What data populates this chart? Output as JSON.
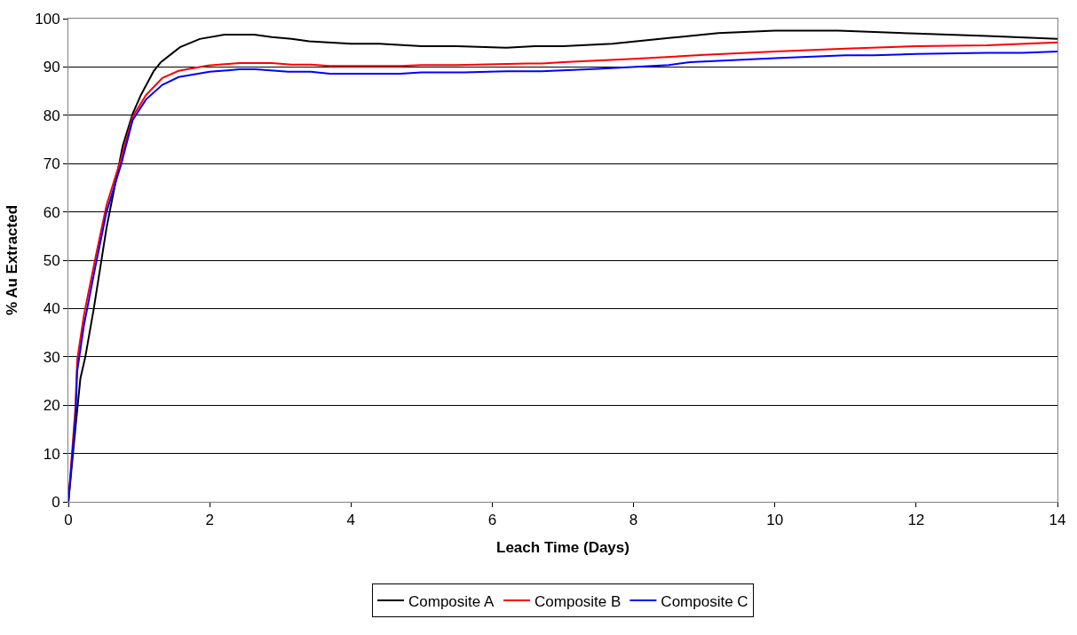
{
  "chart_data": {
    "type": "line",
    "xlabel": "Leach Time (Days)",
    "ylabel": "% Au Extracted",
    "xlim": [
      0,
      14
    ],
    "xticks": [
      0,
      2,
      4,
      6,
      8,
      10,
      12,
      14
    ],
    "ylim": [
      0,
      100
    ],
    "yticks": [
      0,
      10,
      20,
      30,
      40,
      50,
      60,
      70,
      80,
      90,
      100
    ],
    "grid": "y",
    "legend": "bottom",
    "marker": "none",
    "line_style": "solid",
    "series": [
      {
        "name": "Composite A",
        "color": "#000000",
        "x": [
          0,
          0.125,
          0.17,
          0.24,
          0.36,
          0.54,
          0.77,
          0.91,
          1.03,
          1.21,
          1.31,
          1.58,
          1.86,
          2.21,
          2.63,
          2.88,
          3.16,
          3.41,
          4,
          4.4,
          5,
          5.5,
          6.2,
          6.6,
          7,
          7.7,
          8.5,
          9.2,
          10,
          10.9,
          12,
          13,
          14
        ],
        "values": [
          0,
          19,
          25.5,
          30,
          40,
          56.7,
          73.7,
          80.3,
          84.3,
          89.2,
          91,
          94.1,
          95.8,
          96.7,
          96.7,
          96.2,
          95.8,
          95.3,
          94.8,
          94.8,
          94.3,
          94.3,
          94,
          94.3,
          94.3,
          94.8,
          96,
          97,
          97.5,
          97.5,
          96.9,
          96.4,
          95.8
        ]
      },
      {
        "name": "Composite B",
        "color": "#ff0000",
        "x": [
          0,
          0.1,
          0.125,
          0.22,
          0.38,
          0.54,
          0.75,
          0.91,
          1.1,
          1.33,
          1.56,
          1.98,
          2.42,
          2.88,
          3.16,
          3.43,
          3.7,
          4.7,
          5,
          5.5,
          6.5,
          6.7,
          7,
          8,
          9,
          10,
          11,
          12,
          13,
          14
        ],
        "values": [
          0,
          19.6,
          29.4,
          38.6,
          50.3,
          61.4,
          71.2,
          79.7,
          84.2,
          87.7,
          89.2,
          90.3,
          90.8,
          90.8,
          90.5,
          90.5,
          90.2,
          90.2,
          90.4,
          90.4,
          90.7,
          90.7,
          91,
          91.7,
          92.5,
          93.2,
          93.8,
          94.3,
          94.5,
          95.1
        ]
      },
      {
        "name": "Composite C",
        "color": "#0000ff",
        "x": [
          0,
          0.1,
          0.125,
          0.22,
          0.38,
          0.54,
          0.75,
          0.91,
          1.1,
          1.33,
          1.56,
          2,
          2.42,
          2.65,
          3.11,
          3.43,
          3.7,
          4.7,
          5,
          5.6,
          6.2,
          6.7,
          7.5,
          8.5,
          8.8,
          10,
          11,
          11.4,
          12,
          13,
          13.5,
          14
        ],
        "values": [
          0,
          17.5,
          27,
          36.5,
          48.5,
          60,
          70,
          79,
          83.3,
          86.3,
          87.9,
          89,
          89.5,
          89.5,
          89,
          89,
          88.6,
          88.6,
          88.9,
          88.9,
          89.1,
          89.1,
          89.6,
          90.4,
          91,
          91.8,
          92.4,
          92.4,
          92.7,
          92.9,
          92.9,
          93.2
        ]
      }
    ]
  }
}
